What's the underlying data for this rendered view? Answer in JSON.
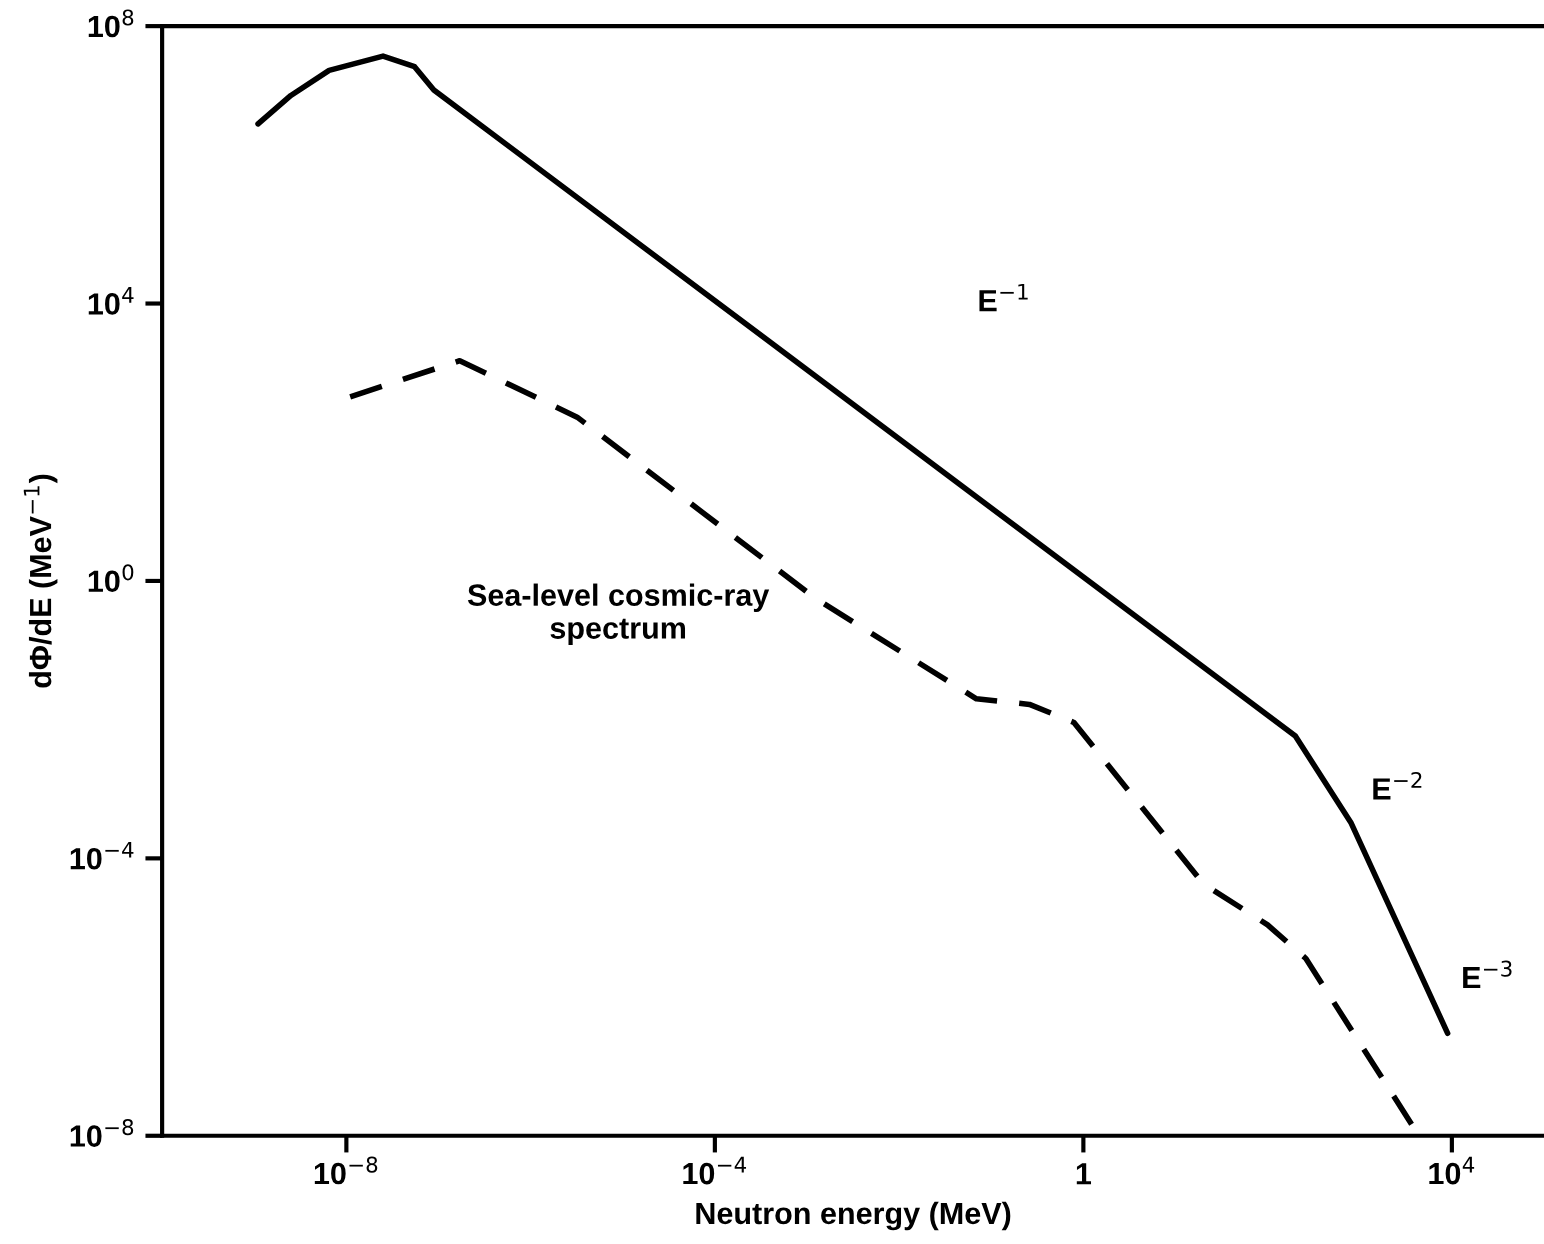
{
  "chart_data": {
    "type": "line",
    "xlabel": "Neutron energy (MeV)",
    "ylabel": "dΦ/dE (MeV$^{−1}$)",
    "log": "xy",
    "grid": false,
    "marker": "none",
    "xlim": [
      1e-10,
      100000.0
    ],
    "ylim": [
      1e-08,
      100000000.0
    ],
    "xticks": [
      {
        "value": 1e-08,
        "label": "10$^{−8}$"
      },
      {
        "value": 0.0001,
        "label": "10$^{−4}$"
      },
      1,
      {
        "value": 10000.0,
        "label": "10$^{4}$"
      }
    ],
    "yticks": [
      {
        "value": 1e-08,
        "label": "10$^{−8}$"
      },
      {
        "value": 0.0001,
        "label": "10$^{−4}$"
      },
      {
        "value": 1,
        "label": "10$^{0}$"
      },
      {
        "value": 10000.0,
        "label": "10$^{4}$"
      },
      {
        "value": 100000000.0,
        "label": "10$^{8}$"
      }
    ],
    "series": [
      {
        "color": "#000000",
        "line_style": "solid",
        "x": [
          1.1e-09,
          2.5e-09,
          6.5e-09,
          2.5e-08,
          5.5e-08,
          8.9e-08,
          200,
          800,
          9000
        ],
        "values": [
          3900000.0,
          10000000.0,
          23000000.0,
          37000000.0,
          26000000.0,
          12000000.0,
          0.0058,
          0.00033,
          3e-07
        ]
      },
      {
        "color": "#000000",
        "line_style": "dashed",
        "x": [
          1.1e-08,
          1.7e-07,
          3.2e-06,
          0.00126,
          0.069,
          0.26,
          0.79,
          20,
          100,
          260,
          4200
        ],
        "values": [
          450,
          1500,
          230,
          0.55,
          0.02,
          0.0166,
          0.0091,
          4.3e-05,
          1.1e-05,
          3.6e-06,
          1.1e-08
        ]
      }
    ],
    "annotations": [
      "E$^{−1}$",
      "E$^{−2}$",
      "E$^{−3}$",
      "Sea-level cosmic-ray\nspectrum"
    ]
  }
}
